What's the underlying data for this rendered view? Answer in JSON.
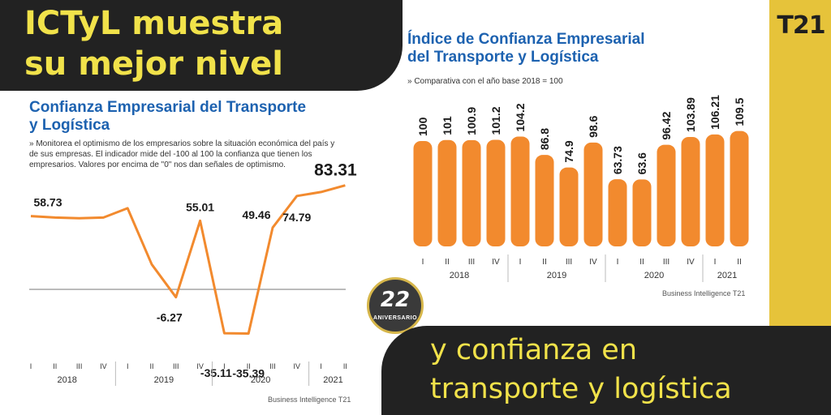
{
  "headline": {
    "line1": "ICTyL muestra",
    "line2": "su mejor nivel"
  },
  "banner": {
    "line1": "y confianza en",
    "line2": "transporte y logística"
  },
  "logo_text": "T21",
  "badge": {
    "number": "22",
    "text": "ANIVERSARIO"
  },
  "colors": {
    "accent_orange": "#f28a2e",
    "title_blue": "#1d62b0",
    "yellow": "#e6c33a",
    "dark": "#222222"
  },
  "chart_data": [
    {
      "type": "line",
      "title_line1": "Confianza Empresarial del Transporte",
      "title_line2": "y Logística",
      "note_line1": "» Monitorea el optimismo de los empresarios sobre la situación económica del país y",
      "note_line2": "de sus empresas. El indicador mide del -100 al 100 la confianza que tienen los",
      "note_line3": "empresarios. Valores por encima de \"0\" nos dan señales de optimismo.",
      "x": [
        "I",
        "II",
        "III",
        "IV",
        "I",
        "II",
        "III",
        "IV",
        "I",
        "II",
        "III",
        "IV",
        "I",
        "II"
      ],
      "years": [
        "2018",
        "2019",
        "2020",
        "2021"
      ],
      "values": [
        58.73,
        57.5,
        57.0,
        57.5,
        65.0,
        20.0,
        -6.27,
        55.01,
        -35.11,
        -35.39,
        49.46,
        74.79,
        78.0,
        83.31
      ],
      "labels": [
        {
          "index": 0,
          "text": "58.73"
        },
        {
          "index": 6,
          "text": "-6.27"
        },
        {
          "index": 7,
          "text": "55.01"
        },
        {
          "index": 8,
          "text": "-35.11"
        },
        {
          "index": 9,
          "text": "-35.39"
        },
        {
          "index": 10,
          "text": "49.46"
        },
        {
          "index": 11,
          "text": "74.79"
        },
        {
          "index": 13,
          "text": "83.31"
        }
      ],
      "source": "Business Intelligence T21"
    },
    {
      "type": "bar",
      "title_line1": "Índice de Confianza Empresarial",
      "title_line2": "del Transporte y Logística",
      "note": "» Comparativa con el año base 2018 = 100",
      "categories": [
        "I",
        "II",
        "III",
        "IV",
        "I",
        "II",
        "III",
        "IV",
        "I",
        "II",
        "III",
        "IV",
        "I",
        "II"
      ],
      "years": [
        "2018",
        "2019",
        "2020",
        "2021"
      ],
      "values": [
        100,
        101,
        100.9,
        101.2,
        104.2,
        86.8,
        74.9,
        98.6,
        63.73,
        63.6,
        96.42,
        103.89,
        106.21,
        109.5
      ],
      "value_labels": [
        "100",
        "101",
        "100.9",
        "101.2",
        "104.2",
        "86.8",
        "74.9",
        "98.6",
        "63.73",
        "63.6",
        "96.42",
        "103.89",
        "106.21",
        "109.5"
      ],
      "source": "Business Intelligence T21"
    }
  ]
}
